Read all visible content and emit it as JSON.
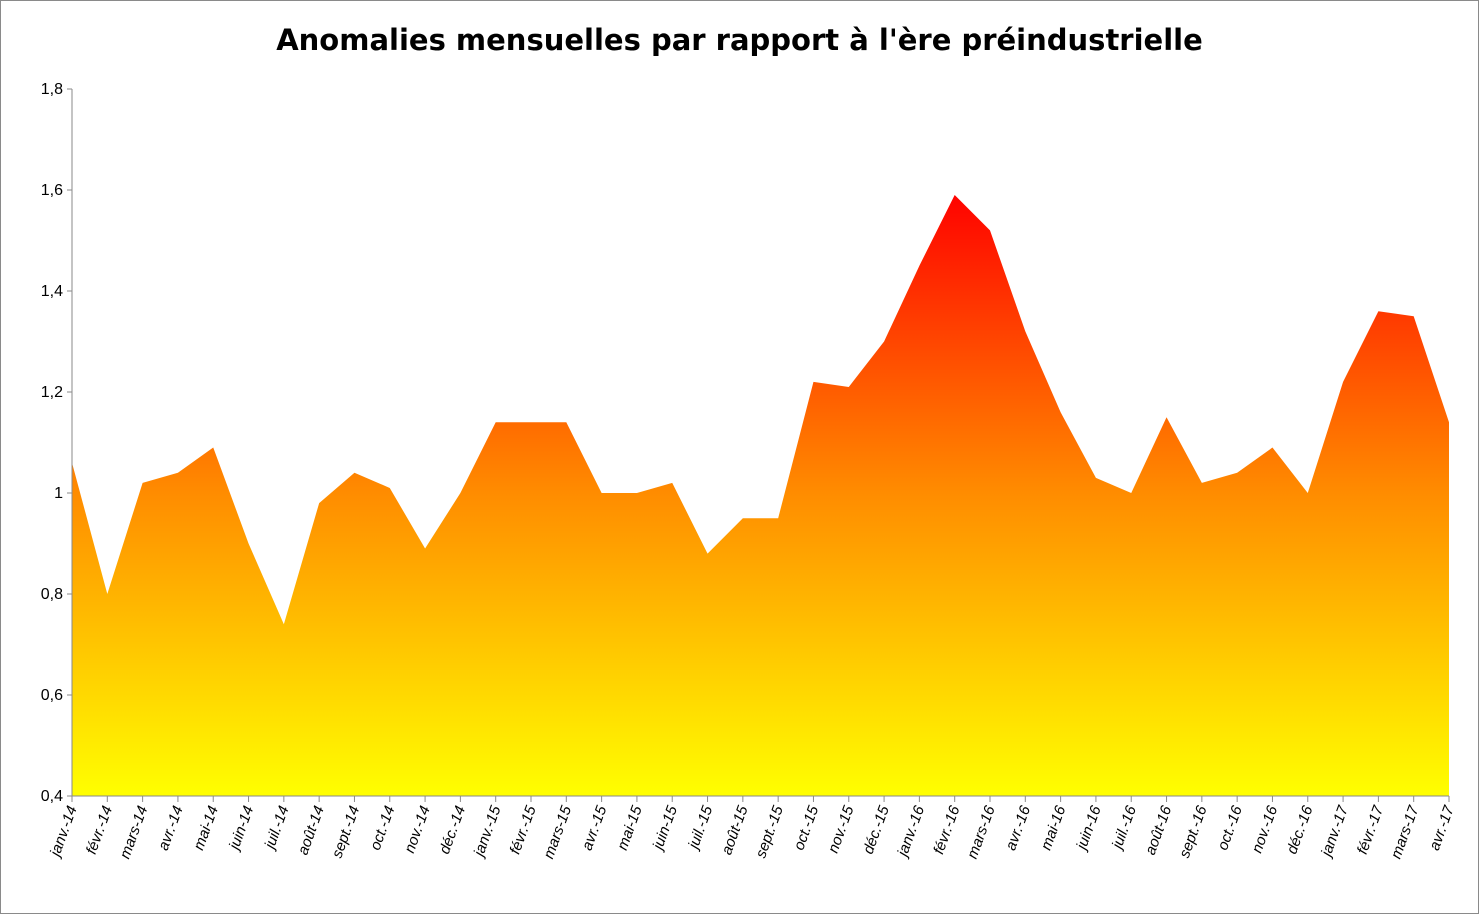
{
  "chart_data": {
    "type": "area",
    "title": "Anomalies mensuelles par rapport à l'ère préindustrielle",
    "xlabel": "",
    "ylabel": "",
    "ylim": [
      0.4,
      1.8
    ],
    "yticks": [
      0.4,
      0.6,
      0.8,
      1.0,
      1.2,
      1.4,
      1.6,
      1.8
    ],
    "ytick_labels": [
      "0,4",
      "0,6",
      "0,8",
      "1",
      "1,2",
      "1,4",
      "1,6",
      "1,8"
    ],
    "grid": false,
    "legend": "none",
    "fill_gradient": {
      "top": "#ff0000",
      "middle": "#ff8c00",
      "bottom": "#ffff00"
    },
    "categories": [
      "janv.-14",
      "févr.-14",
      "mars-14",
      "avr.-14",
      "mai-14",
      "juin-14",
      "juil.-14",
      "août-14",
      "sept.-14",
      "oct.-14",
      "nov.-14",
      "déc.-14",
      "janv.-15",
      "févr.-15",
      "mars-15",
      "avr.-15",
      "mai-15",
      "juin-15",
      "juil.-15",
      "août-15",
      "sept.-15",
      "oct.-15",
      "nov.-15",
      "déc.-15",
      "janv.-16",
      "févr.-16",
      "mars-16",
      "avr.-16",
      "mai-16",
      "juin-16",
      "juil.-16",
      "août-16",
      "sept.-16",
      "oct.-16",
      "nov.-16",
      "déc.-16",
      "janv.-17",
      "févr.-17",
      "mars-17",
      "avr.-17"
    ],
    "series": [
      {
        "values": [
          1.06,
          0.8,
          1.02,
          1.04,
          1.09,
          0.9,
          0.74,
          0.98,
          1.04,
          1.01,
          0.89,
          1.0,
          1.14,
          1.14,
          1.14,
          1.0,
          1.0,
          1.02,
          0.88,
          0.95,
          0.95,
          1.22,
          1.21,
          1.3,
          1.45,
          1.59,
          1.52,
          1.32,
          1.16,
          1.03,
          1.0,
          1.15,
          1.02,
          1.04,
          1.09,
          1.0,
          1.22,
          1.36,
          1.35,
          1.14
        ]
      }
    ]
  }
}
